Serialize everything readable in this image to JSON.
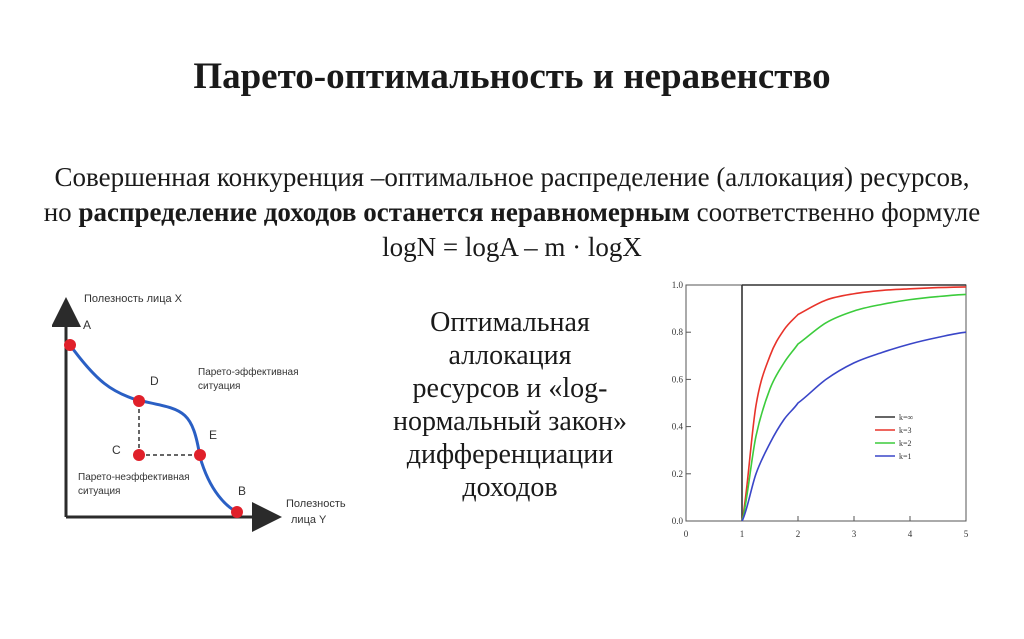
{
  "title": "Парето-оптимальность и неравенство",
  "paragraph": {
    "part1": "Совершенная конкуренция –оптимальное распределение (аллокация) ресурсов, но ",
    "bold": "распределение доходов останется неравномерным",
    "part2": " соответственно формуле  logN = logA – m · logX"
  },
  "middle_text": [
    "Оптимальная",
    "аллокация",
    "ресурсов и «log-",
    "нормальный закон»",
    "дифференциации",
    "доходов"
  ],
  "left_diagram": {
    "y_axis_label": "Полезность лица X",
    "x_axis_label_lines": [
      "Полезность",
      "лица Y"
    ],
    "points": [
      "A",
      "D",
      "C",
      "E",
      "B"
    ],
    "efficient_label_lines": [
      "Парето-эффективная",
      "ситуация"
    ],
    "inefficient_label_lines": [
      "Парето-неэффективная",
      "ситуация"
    ],
    "point_color": "#e0202a",
    "curve_color": "#2a5fc4"
  },
  "chart_data": {
    "type": "line",
    "x": [
      1,
      1.25,
      1.5,
      1.75,
      2,
      2.5,
      3,
      3.5,
      4,
      4.5,
      5
    ],
    "series": [
      {
        "name": "k=∞",
        "color": "#333333",
        "values": [
          1,
          1,
          1,
          1,
          1,
          1,
          1,
          1,
          1,
          1,
          1
        ]
      },
      {
        "name": "k=3",
        "color": "#e8332a",
        "values": [
          0,
          0.49,
          0.7,
          0.81,
          0.875,
          0.936,
          0.963,
          0.977,
          0.984,
          0.989,
          0.992
        ]
      },
      {
        "name": "k=2",
        "color": "#3ccc3c",
        "values": [
          0,
          0.36,
          0.56,
          0.67,
          0.75,
          0.84,
          0.89,
          0.918,
          0.938,
          0.951,
          0.96
        ]
      },
      {
        "name": "k=1",
        "color": "#3a46c8",
        "values": [
          0,
          0.2,
          0.33,
          0.43,
          0.5,
          0.6,
          0.67,
          0.714,
          0.75,
          0.778,
          0.8
        ]
      }
    ],
    "xlim": [
      0,
      5
    ],
    "ylim": [
      0,
      1
    ],
    "x_ticks": [
      "0",
      "1",
      "2",
      "3",
      "4",
      "5"
    ],
    "y_ticks": [
      "0.0",
      "0.2",
      "0.4",
      "0.6",
      "0.8",
      "1.0"
    ],
    "y_tick_values": [
      0,
      0.2,
      0.4,
      0.6,
      0.8,
      1.0
    ],
    "legend_placement": "lower-right",
    "grid": false
  }
}
